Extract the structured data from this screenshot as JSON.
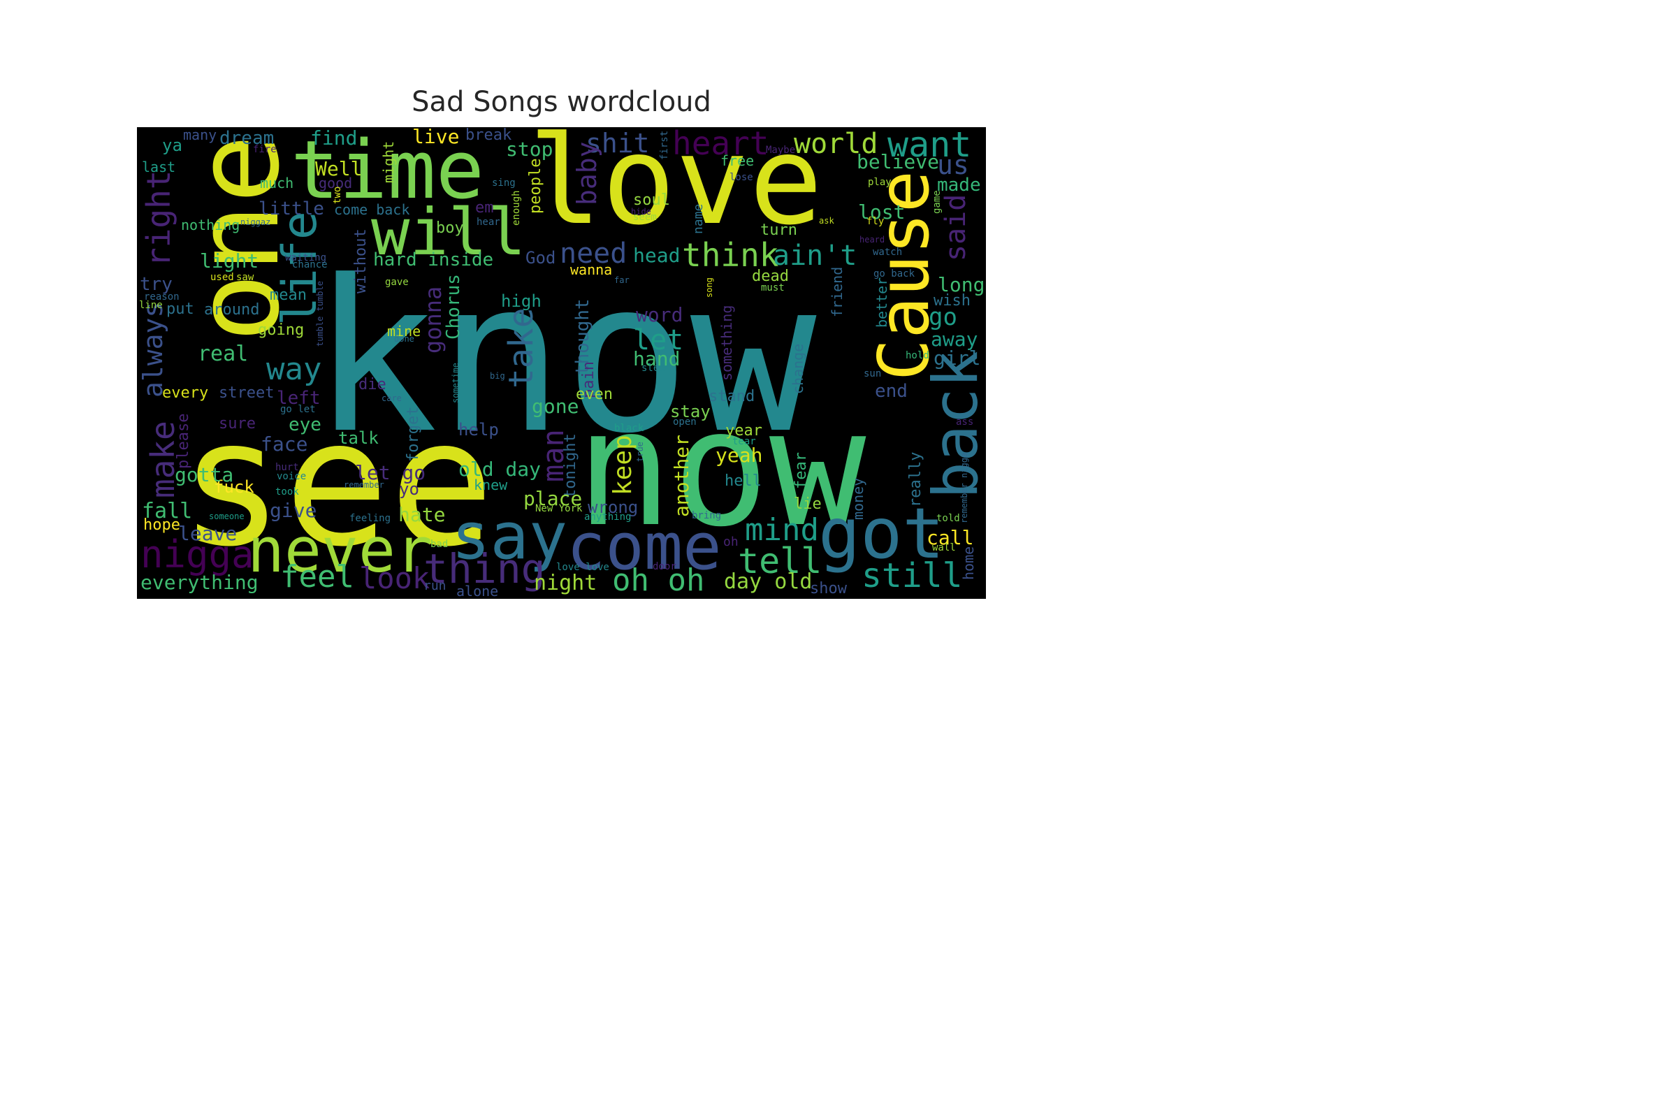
{
  "title": "Sad Songs wordcloud",
  "palette": {
    "yellow": "#d8e21b",
    "lime": "#95d840",
    "green": "#40bd72",
    "teal": "#23888e",
    "cyan": "#1f9e89",
    "blue": "#2c728e",
    "indigo": "#3b518b",
    "purple": "#472c7a",
    "violet": "#440154",
    "background": "#000000"
  },
  "words": [
    {
      "id": "know",
      "text": "know",
      "color": "#23888e"
    },
    {
      "id": "see",
      "text": "see",
      "color": "#d8e21b"
    },
    {
      "id": "now",
      "text": "now",
      "color": "#40bd72"
    },
    {
      "id": "one",
      "text": "one",
      "color": "#d8e21b"
    },
    {
      "id": "love",
      "text": "love",
      "color": "#d8e21b"
    },
    {
      "id": "time",
      "text": "time",
      "color": "#7ad151"
    },
    {
      "id": "will",
      "text": "will",
      "color": "#7ad151"
    },
    {
      "id": "life",
      "text": "life",
      "color": "#23888e"
    },
    {
      "id": "cause",
      "text": "Cause",
      "color": "#fde725"
    },
    {
      "id": "back",
      "text": "back",
      "color": "#2c728e"
    },
    {
      "id": "say",
      "text": "say",
      "color": "#2c728e"
    },
    {
      "id": "come",
      "text": "come",
      "color": "#3b518b"
    },
    {
      "id": "got",
      "text": "got",
      "color": "#2c728e"
    },
    {
      "id": "never",
      "text": "never",
      "color": "#a0da39"
    },
    {
      "id": "nigga",
      "text": "nigga",
      "color": "#440154"
    },
    {
      "id": "feel",
      "text": "feel",
      "color": "#40bd72"
    },
    {
      "id": "look",
      "text": "look",
      "color": "#482475"
    },
    {
      "id": "thing",
      "text": "thing",
      "color": "#472c7a"
    },
    {
      "id": "oh_oh",
      "text": "oh oh",
      "color": "#40bd72"
    },
    {
      "id": "still",
      "text": "still",
      "color": "#1f9e89"
    },
    {
      "id": "tell",
      "text": "tell",
      "color": "#40bd72"
    },
    {
      "id": "mind",
      "text": "mind",
      "color": "#1f9e89"
    },
    {
      "id": "day_old",
      "text": "day old",
      "color": "#95d840"
    },
    {
      "id": "night",
      "text": "night",
      "color": "#a0da39"
    },
    {
      "id": "everything",
      "text": "everything",
      "color": "#40bd72"
    },
    {
      "id": "want",
      "text": "want",
      "color": "#1f9e89"
    },
    {
      "id": "world",
      "text": "world",
      "color": "#a0da39"
    },
    {
      "id": "heart",
      "text": "heart",
      "color": "#440154"
    },
    {
      "id": "shit",
      "text": "shit",
      "color": "#3b518b"
    },
    {
      "id": "us",
      "text": "us",
      "color": "#3b518b"
    },
    {
      "id": "believe",
      "text": "believe",
      "color": "#40bd72"
    },
    {
      "id": "made",
      "text": "made",
      "color": "#35b779"
    },
    {
      "id": "said",
      "text": "said",
      "color": "#482475"
    },
    {
      "id": "right",
      "text": "right",
      "color": "#482475"
    },
    {
      "id": "make",
      "text": "make",
      "color": "#472c7a"
    },
    {
      "id": "always",
      "text": "always",
      "color": "#3b518b"
    },
    {
      "id": "find",
      "text": "find",
      "color": "#1f9e89"
    },
    {
      "id": "dream",
      "text": "dream",
      "color": "#2c728e"
    },
    {
      "id": "many",
      "text": "many",
      "color": "#3b518b"
    },
    {
      "id": "ya",
      "text": "ya",
      "color": "#1f9e89"
    },
    {
      "id": "last",
      "text": "last",
      "color": "#1f9e89"
    },
    {
      "id": "well",
      "text": "Well",
      "color": "#c2df23"
    },
    {
      "id": "much",
      "text": "much",
      "color": "#40bd72"
    },
    {
      "id": "good",
      "text": "good",
      "color": "#472c7a"
    },
    {
      "id": "little",
      "text": "little",
      "color": "#3b518b"
    },
    {
      "id": "come_back",
      "text": "come back",
      "color": "#2c728e"
    },
    {
      "id": "nothing",
      "text": "nothing",
      "color": "#40bd72"
    },
    {
      "id": "niggaz",
      "text": "niggaz",
      "color": "#31688e"
    },
    {
      "id": "boy",
      "text": "boy",
      "color": "#7ad151"
    },
    {
      "id": "light",
      "text": "light",
      "color": "#40bd72"
    },
    {
      "id": "hard_inside",
      "text": "hard inside",
      "color": "#40bd72"
    },
    {
      "id": "live",
      "text": "live",
      "color": "#fde725"
    },
    {
      "id": "break",
      "text": "break",
      "color": "#3b518b"
    },
    {
      "id": "stop",
      "text": "stop",
      "color": "#40bd72"
    },
    {
      "id": "might",
      "text": "might",
      "color": "#a0da39"
    },
    {
      "id": "baby",
      "text": "baby",
      "color": "#472c7a"
    },
    {
      "id": "people",
      "text": "people",
      "color": "#c2df23"
    },
    {
      "id": "need",
      "text": "need",
      "color": "#3b518b"
    },
    {
      "id": "god",
      "text": "God",
      "color": "#3b518b"
    },
    {
      "id": "head",
      "text": "head",
      "color": "#1f9e89"
    },
    {
      "id": "think",
      "text": "think",
      "color": "#7ad151"
    },
    {
      "id": "aint",
      "text": "ain't",
      "color": "#1f9e89"
    },
    {
      "id": "wanna",
      "text": "wanna",
      "color": "#fde725"
    },
    {
      "id": "soul",
      "text": "soul",
      "color": "#95d840"
    },
    {
      "id": "seem",
      "text": "seem",
      "color": "#a0da39"
    },
    {
      "id": "free",
      "text": "free",
      "color": "#40bd72"
    },
    {
      "id": "lose",
      "text": "lose",
      "color": "#3b518b"
    },
    {
      "id": "turn",
      "text": "turn",
      "color": "#7ad151"
    },
    {
      "id": "lost",
      "text": "lost",
      "color": "#40bd72"
    },
    {
      "id": "ask",
      "text": "ask",
      "color": "#c2df23"
    },
    {
      "id": "name",
      "text": "name",
      "color": "#2c728e"
    },
    {
      "id": "fly",
      "text": "fly",
      "color": "#d8e21b"
    },
    {
      "id": "heard",
      "text": "heard",
      "color": "#482475"
    },
    {
      "id": "watch",
      "text": "watch",
      "color": "#31688e"
    },
    {
      "id": "go_back",
      "text": "go back",
      "color": "#31688e"
    },
    {
      "id": "long",
      "text": "long",
      "color": "#40bd72"
    },
    {
      "id": "wish",
      "text": "wish",
      "color": "#2c728e"
    },
    {
      "id": "go",
      "text": "go",
      "color": "#1f9e89"
    },
    {
      "id": "away",
      "text": "away",
      "color": "#1f9e89"
    },
    {
      "id": "girl",
      "text": "girl",
      "color": "#2c728e"
    },
    {
      "id": "end",
      "text": "end",
      "color": "#3b518b"
    },
    {
      "id": "better",
      "text": "better",
      "color": "#23888e"
    },
    {
      "id": "friend",
      "text": "friend",
      "color": "#31688e"
    },
    {
      "id": "dead",
      "text": "dead",
      "color": "#95d840"
    },
    {
      "id": "must",
      "text": "must",
      "color": "#7ad151"
    },
    {
      "id": "far",
      "text": "far",
      "color": "#31688e"
    },
    {
      "id": "song",
      "text": "song",
      "color": "#d8e21b"
    },
    {
      "id": "without",
      "text": "without",
      "color": "#3b518b"
    },
    {
      "id": "gave",
      "text": "gave",
      "color": "#95d840"
    },
    {
      "id": "take",
      "text": "take",
      "color": "#31688e"
    },
    {
      "id": "thought",
      "text": "thought",
      "color": "#31688e"
    },
    {
      "id": "pain",
      "text": "pain",
      "color": "#472c7a"
    },
    {
      "id": "word",
      "text": "word",
      "color": "#472c7a"
    },
    {
      "id": "let",
      "text": "let",
      "color": "#1f9e89"
    },
    {
      "id": "hand",
      "text": "hand",
      "color": "#40bd72"
    },
    {
      "id": "sleep",
      "text": "sleep",
      "color": "#23888e"
    },
    {
      "id": "high",
      "text": "high",
      "color": "#1f9e89"
    },
    {
      "id": "gonna",
      "text": "gonna",
      "color": "#472c7a"
    },
    {
      "id": "chorus",
      "text": "Chorus",
      "color": "#35b779"
    },
    {
      "id": "mine",
      "text": "mine",
      "color": "#c2df23"
    },
    {
      "id": "done",
      "text": "done",
      "color": "#2c728e"
    },
    {
      "id": "tumble",
      "text": "tumble tumble",
      "color": "#3b518b"
    },
    {
      "id": "sometime",
      "text": "sometime",
      "color": "#23888e"
    },
    {
      "id": "big",
      "text": "big",
      "color": "#31688e"
    },
    {
      "id": "gone",
      "text": "gone",
      "color": "#40bd72"
    },
    {
      "id": "even",
      "text": "even",
      "color": "#a0da39"
    },
    {
      "id": "something",
      "text": "something",
      "color": "#472c7a"
    },
    {
      "id": "stand",
      "text": "stand",
      "color": "#2c728e"
    },
    {
      "id": "change",
      "text": "change",
      "color": "#2c728e"
    },
    {
      "id": "hold",
      "text": "hold",
      "color": "#35b779"
    },
    {
      "id": "sun",
      "text": "sun",
      "color": "#31688e"
    },
    {
      "id": "stay",
      "text": "stay",
      "color": "#7ad151"
    },
    {
      "id": "open",
      "text": "open",
      "color": "#2c728e"
    },
    {
      "id": "year",
      "text": "year",
      "color": "#a0da39"
    },
    {
      "id": "tear",
      "text": "tear",
      "color": "#1f9e89"
    },
    {
      "id": "yeah",
      "text": "yeah",
      "color": "#d8e21b"
    },
    {
      "id": "another",
      "text": "another",
      "color": "#c2df23"
    },
    {
      "id": "fear",
      "text": "fear",
      "color": "#35b779"
    },
    {
      "id": "hell",
      "text": "hell",
      "color": "#23888e"
    },
    {
      "id": "really",
      "text": "really",
      "color": "#2c728e"
    },
    {
      "id": "money",
      "text": "money",
      "color": "#31688e"
    },
    {
      "id": "ass",
      "text": "ass",
      "color": "#482475"
    },
    {
      "id": "remember_nigga",
      "text": "remember nigga",
      "color": "#31688e"
    },
    {
      "id": "lie",
      "text": "lie",
      "color": "#95d840"
    },
    {
      "id": "call",
      "text": "call",
      "color": "#fde725"
    },
    {
      "id": "told",
      "text": "told",
      "color": "#7ad151"
    },
    {
      "id": "wall",
      "text": "wall",
      "color": "#a0da39"
    },
    {
      "id": "home",
      "text": "home",
      "color": "#3b518b"
    },
    {
      "id": "show",
      "text": "show",
      "color": "#3b518b"
    },
    {
      "id": "bring",
      "text": "bring",
      "color": "#31688e"
    },
    {
      "id": "oh",
      "text": "oh",
      "color": "#482475"
    },
    {
      "id": "door",
      "text": "door",
      "color": "#482475"
    },
    {
      "id": "love_love",
      "text": "love love",
      "color": "#23888e"
    },
    {
      "id": "anything",
      "text": "anything",
      "color": "#1f9e89"
    },
    {
      "id": "new_york",
      "text": "New York",
      "color": "#95d840"
    },
    {
      "id": "wrong",
      "text": "wrong",
      "color": "#3b518b"
    },
    {
      "id": "keep",
      "text": "keep",
      "color": "#c2df23"
    },
    {
      "id": "black",
      "text": "black",
      "color": "#1f9e89"
    },
    {
      "id": "true",
      "text": "true",
      "color": "#31688e"
    },
    {
      "id": "tonight",
      "text": "tonight",
      "color": "#31688e"
    },
    {
      "id": "place",
      "text": "place",
      "color": "#95d840"
    },
    {
      "id": "man",
      "text": "man",
      "color": "#482475"
    },
    {
      "id": "old_day",
      "text": "old day",
      "color": "#35b779"
    },
    {
      "id": "help",
      "text": "help",
      "color": "#3b518b"
    },
    {
      "id": "knew",
      "text": "knew",
      "color": "#1f9e89"
    },
    {
      "id": "forget",
      "text": "forget",
      "color": "#2c728e"
    },
    {
      "id": "let_go",
      "text": "let go",
      "color": "#472c7a"
    },
    {
      "id": "yo",
      "text": "yo",
      "color": "#472c7a"
    },
    {
      "id": "hate",
      "text": "hate",
      "color": "#95d840"
    },
    {
      "id": "run",
      "text": "run",
      "color": "#3b518b"
    },
    {
      "id": "alone",
      "text": "alone",
      "color": "#3b518b"
    },
    {
      "id": "bad",
      "text": "bad",
      "color": "#7ad151"
    },
    {
      "id": "talk",
      "text": "talk",
      "color": "#40bd72"
    },
    {
      "id": "remember",
      "text": "remember",
      "color": "#31688e"
    },
    {
      "id": "took",
      "text": "took",
      "color": "#1f9e89"
    },
    {
      "id": "feeling",
      "text": "feeling",
      "color": "#2c728e"
    },
    {
      "id": "someone",
      "text": "someone",
      "color": "#1f9e89"
    },
    {
      "id": "care",
      "text": "care",
      "color": "#31688e"
    },
    {
      "id": "die",
      "text": "die",
      "color": "#472c7a"
    },
    {
      "id": "left",
      "text": "left",
      "color": "#482475"
    },
    {
      "id": "eye",
      "text": "eye",
      "color": "#40bd72"
    },
    {
      "id": "face",
      "text": "face",
      "color": "#3b518b"
    },
    {
      "id": "give",
      "text": "give",
      "color": "#3b518b"
    },
    {
      "id": "hurt",
      "text": "hurt",
      "color": "#472c7a"
    },
    {
      "id": "voice",
      "text": "voice",
      "color": "#23888e"
    },
    {
      "id": "fuck",
      "text": "fuck",
      "color": "#fde725"
    },
    {
      "id": "gotta",
      "text": "gotta",
      "color": "#40bd72"
    },
    {
      "id": "sure",
      "text": "sure",
      "color": "#482475"
    },
    {
      "id": "please",
      "text": "please",
      "color": "#482475"
    },
    {
      "id": "fall",
      "text": "fall",
      "color": "#40bd72"
    },
    {
      "id": "hope",
      "text": "hope",
      "color": "#fde725"
    },
    {
      "id": "leave",
      "text": "leave",
      "color": "#3b518b"
    },
    {
      "id": "every",
      "text": "every",
      "color": "#d8e21b"
    },
    {
      "id": "street",
      "text": "street",
      "color": "#3b518b"
    },
    {
      "id": "go_let",
      "text": "go let",
      "color": "#2c728e"
    },
    {
      "id": "real",
      "text": "real",
      "color": "#40bd72"
    },
    {
      "id": "way",
      "text": "way",
      "color": "#23888e"
    },
    {
      "id": "going",
      "text": "going",
      "color": "#a0da39"
    },
    {
      "id": "around",
      "text": "around",
      "color": "#2c728e"
    },
    {
      "id": "mean",
      "text": "mean",
      "color": "#23888e"
    },
    {
      "id": "put",
      "text": "put",
      "color": "#2c728e"
    },
    {
      "id": "try",
      "text": "try",
      "color": "#3b518b"
    },
    {
      "id": "reason",
      "text": "reason",
      "color": "#31688e"
    },
    {
      "id": "line",
      "text": "line",
      "color": "#95d840"
    },
    {
      "id": "used",
      "text": "used",
      "color": "#d8e21b"
    },
    {
      "id": "saw",
      "text": "saw",
      "color": "#c2df23"
    },
    {
      "id": "waiting",
      "text": "waiting",
      "color": "#3b518b"
    },
    {
      "id": "chance",
      "text": "chance",
      "color": "#2c728e"
    },
    {
      "id": "two",
      "text": "two",
      "color": "#d8e21b"
    },
    {
      "id": "em",
      "text": "em",
      "color": "#482475"
    },
    {
      "id": "hear",
      "text": "hear",
      "color": "#31688e"
    },
    {
      "id": "enough",
      "text": "enough",
      "color": "#a0da39"
    },
    {
      "id": "sing",
      "text": "sing",
      "color": "#2c728e"
    },
    {
      "id": "fire",
      "text": "fire",
      "color": "#482475"
    },
    {
      "id": "first",
      "text": "first",
      "color": "#31688e"
    },
    {
      "id": "maybe",
      "text": "Maybe",
      "color": "#482475"
    },
    {
      "id": "play",
      "text": "play",
      "color": "#a0da39"
    },
    {
      "id": "game",
      "text": "game",
      "color": "#7ad151"
    },
    {
      "id": "hide",
      "text": "hide",
      "color": "#482475"
    }
  ]
}
